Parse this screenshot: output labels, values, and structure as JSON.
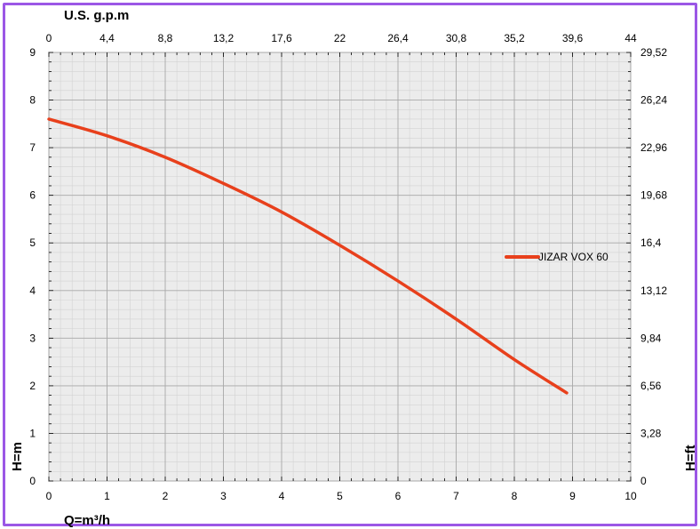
{
  "chart_data": {
    "type": "line",
    "title": "",
    "x_bottom": {
      "label": "Q=m³/h",
      "range": [
        0,
        10
      ],
      "ticks": [
        "0",
        "1",
        "2",
        "3",
        "4",
        "5",
        "6",
        "7",
        "8",
        "9",
        "10"
      ]
    },
    "x_top": {
      "label": "U.S. g.p.m",
      "ticks": [
        "0",
        "4,4",
        "8,8",
        "13,2",
        "17,6",
        "22",
        "26,4",
        "30,8",
        "35,2",
        "39,6",
        "44"
      ]
    },
    "y_left": {
      "label": "H=m",
      "range": [
        0,
        9
      ],
      "ticks": [
        "0",
        "1",
        "2",
        "3",
        "4",
        "5",
        "6",
        "7",
        "8",
        "9"
      ]
    },
    "y_right": {
      "label": "H=ft",
      "ticks": [
        "0",
        "3,28",
        "6,56",
        "9,84",
        "13,12",
        "16,4",
        "19,68",
        "22,96",
        "26,24",
        "29,52"
      ]
    },
    "grid": true,
    "legend_position": "right",
    "series": [
      {
        "name": "JIZAR VOX 60",
        "color": "#e8401c",
        "x": [
          0,
          1,
          2,
          3,
          4,
          5,
          6,
          7,
          8,
          8.9
        ],
        "y": [
          7.6,
          7.25,
          6.8,
          6.25,
          5.65,
          4.95,
          4.2,
          3.4,
          2.55,
          1.85
        ]
      }
    ]
  }
}
